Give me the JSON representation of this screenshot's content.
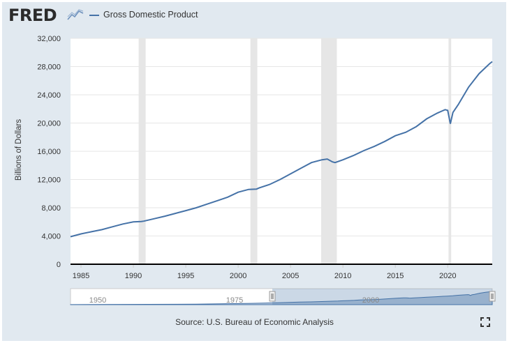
{
  "header": {
    "logo_text": "FRED",
    "logo_icon": "fred-chart-icon",
    "legend_label": "Gross Domestic Product",
    "series_color": "#4572a7"
  },
  "chart_data": {
    "type": "line",
    "title": "",
    "xlabel": "",
    "ylabel": "Billions of Dollars",
    "ylim": [
      0,
      32000
    ],
    "yticks": [
      0,
      4000,
      8000,
      12000,
      16000,
      20000,
      24000,
      28000,
      32000
    ],
    "ytick_labels": [
      "0",
      "4,000",
      "8,000",
      "12,000",
      "16,000",
      "20,000",
      "24,000",
      "28,000",
      "32,000"
    ],
    "xlim": [
      1984.0,
      2024.25
    ],
    "xticks": [
      1985,
      1990,
      1995,
      2000,
      2005,
      2010,
      2015,
      2020
    ],
    "grid": true,
    "recessions": [
      [
        1990.5,
        1991.17
      ],
      [
        2001.17,
        2001.83
      ],
      [
        2007.92,
        2009.42
      ],
      [
        2020.08,
        2020.33
      ]
    ],
    "series": [
      {
        "name": "Gross Domestic Product",
        "color": "#4572a7",
        "x": [
          1984.0,
          1985.0,
          1986.0,
          1987.0,
          1988.0,
          1989.0,
          1990.0,
          1990.75,
          1991.0,
          1992.0,
          1993.0,
          1994.0,
          1995.0,
          1996.0,
          1997.0,
          1998.0,
          1999.0,
          2000.0,
          2001.0,
          2001.75,
          2002.0,
          2003.0,
          2004.0,
          2005.0,
          2006.0,
          2007.0,
          2008.0,
          2008.5,
          2009.0,
          2009.25,
          2010.0,
          2011.0,
          2012.0,
          2013.0,
          2014.0,
          2015.0,
          2016.0,
          2017.0,
          2018.0,
          2019.0,
          2019.75,
          2020.0,
          2020.25,
          2020.5,
          2021.0,
          2022.0,
          2023.0,
          2024.0,
          2024.25
        ],
        "values": [
          3900,
          4300,
          4600,
          4900,
          5300,
          5700,
          6000,
          6050,
          6100,
          6450,
          6800,
          7200,
          7600,
          8000,
          8500,
          9000,
          9500,
          10200,
          10600,
          10650,
          10800,
          11300,
          12000,
          12800,
          13600,
          14400,
          14800,
          14900,
          14500,
          14400,
          14800,
          15400,
          16100,
          16700,
          17400,
          18200,
          18700,
          19500,
          20600,
          21400,
          21900,
          21800,
          19900,
          21500,
          22600,
          25100,
          27000,
          28400,
          28700
        ]
      }
    ]
  },
  "navigator": {
    "labels": [
      "1950",
      "1975",
      "2000"
    ]
  },
  "footer": {
    "source_text": "Source: U.S. Bureau of Economic Analysis",
    "fullscreen_icon": "fullscreen-icon"
  }
}
